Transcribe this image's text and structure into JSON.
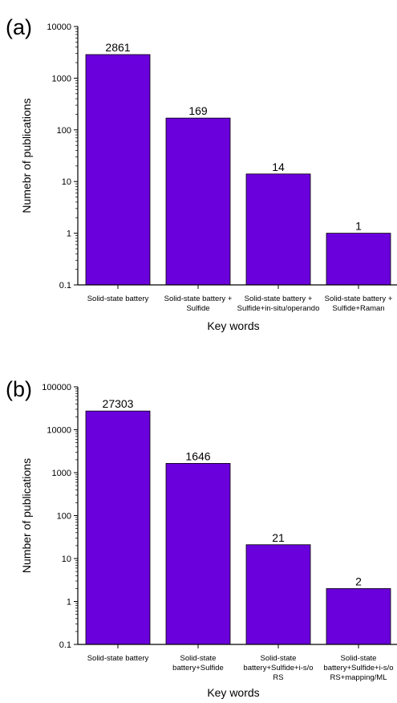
{
  "bar_color": "#6a00dc",
  "chart_data": [
    {
      "panel_label": "(a)",
      "type": "bar",
      "scale": "log",
      "ylim": [
        0.1,
        10000
      ],
      "yticks": [
        "0.1",
        "1",
        "10",
        "100",
        "1000",
        "10000"
      ],
      "categories": [
        [
          "Solid-state battery"
        ],
        [
          "Solid-state battery +",
          "Sulfide"
        ],
        [
          "Solid-state battery +",
          "Sulfide+in-situ/operando"
        ],
        [
          "Solid-state battery +",
          "Sulfide+Raman"
        ]
      ],
      "values": [
        2861,
        169,
        14,
        1
      ],
      "data_labels": [
        "2861",
        "169",
        "14",
        "1"
      ],
      "xlabel": "Key words",
      "ylabel": "Numebr of publications"
    },
    {
      "panel_label": "(b)",
      "type": "bar",
      "scale": "log",
      "ylim": [
        0.1,
        100000
      ],
      "yticks": [
        "0.1",
        "1",
        "10",
        "100",
        "1000",
        "10000",
        "100000"
      ],
      "categories": [
        [
          "Solid-state battery"
        ],
        [
          "Solid-state",
          "battery+Sulfide"
        ],
        [
          "Solid-state",
          "battery+Sulfide+i-s/o",
          "RS"
        ],
        [
          "Solid-state",
          "battery+Sulfide+i-s/o",
          "RS+mapping/ML"
        ]
      ],
      "values": [
        27303,
        1646,
        21,
        2
      ],
      "data_labels": [
        "27303",
        "1646",
        "21",
        "2"
      ],
      "xlabel": "Key words",
      "ylabel": "Number of publications"
    }
  ]
}
